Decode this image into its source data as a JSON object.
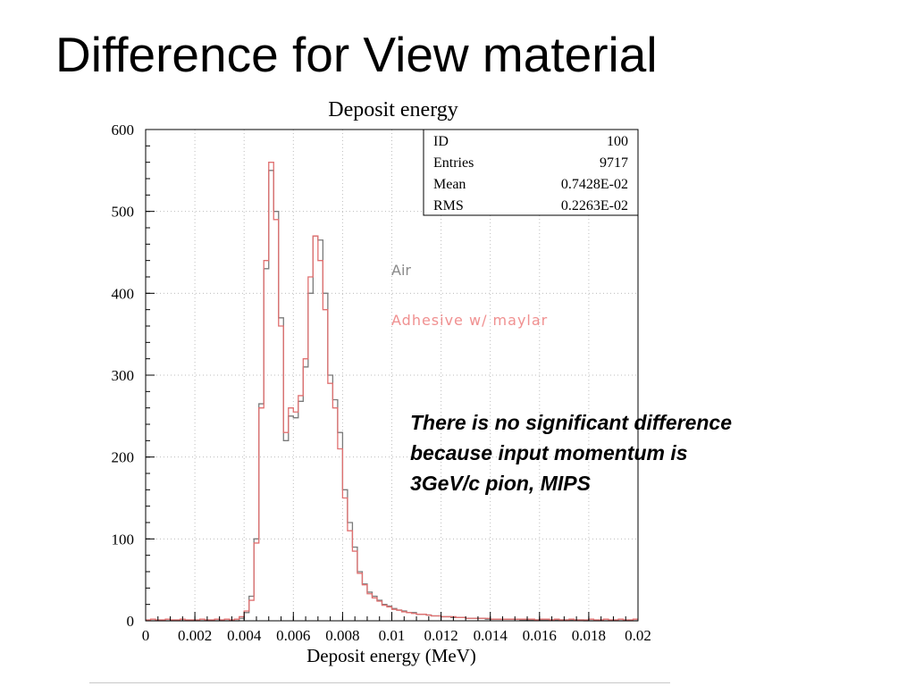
{
  "slide": {
    "title": "Difference for View material",
    "note_lines": [
      "There is no significant difference",
      "because input momentum is",
      "3GeV/c pion, MIPS"
    ]
  },
  "chart_data": {
    "type": "line",
    "title": "Deposit energy",
    "xlabel": "Deposit energy (MeV)",
    "ylabel": "",
    "xlim": [
      0,
      0.02
    ],
    "ylim": [
      0,
      600
    ],
    "grid": true,
    "x_ticks": [
      "0",
      "0.002",
      "0.004",
      "0.006",
      "0.008",
      "0.01",
      "0.012",
      "0.014",
      "0.016",
      "0.018",
      "0.02"
    ],
    "y_ticks": [
      "0",
      "100",
      "200",
      "300",
      "400",
      "500",
      "600"
    ],
    "stats_box": [
      {
        "label": "ID",
        "value": "100"
      },
      {
        "label": "Entries",
        "value": "9717"
      },
      {
        "label": "Mean",
        "value": "0.7428E-02"
      },
      {
        "label": "RMS",
        "value": "0.2263E-02"
      }
    ],
    "x": [
      0.0,
      0.0002,
      0.0004,
      0.0006,
      0.0008,
      0.001,
      0.0012,
      0.0014,
      0.0016,
      0.0018,
      0.002,
      0.0022,
      0.0024,
      0.0026,
      0.0028,
      0.003,
      0.0032,
      0.0034,
      0.0036,
      0.0038,
      0.004,
      0.0042,
      0.0044,
      0.0046,
      0.0048,
      0.005,
      0.0052,
      0.0054,
      0.0056,
      0.0058,
      0.006,
      0.0062,
      0.0064,
      0.0066,
      0.0068,
      0.007,
      0.0072,
      0.0074,
      0.0076,
      0.0078,
      0.008,
      0.0082,
      0.0084,
      0.0086,
      0.0088,
      0.009,
      0.0092,
      0.0094,
      0.0096,
      0.0098,
      0.01,
      0.0102,
      0.0104,
      0.0106,
      0.0108,
      0.011,
      0.0112,
      0.0114,
      0.0116,
      0.0118,
      0.012,
      0.0122,
      0.0124,
      0.0126,
      0.0128,
      0.013,
      0.0132,
      0.0134,
      0.0136,
      0.0138,
      0.014,
      0.0142,
      0.0144,
      0.0146,
      0.0148,
      0.015,
      0.0152,
      0.0154,
      0.0156,
      0.0158,
      0.016,
      0.0162,
      0.0164,
      0.0166,
      0.0168,
      0.017,
      0.0172,
      0.0174,
      0.0176,
      0.0178,
      0.018,
      0.0182,
      0.0184,
      0.0186,
      0.0188,
      0.019,
      0.0192,
      0.0194,
      0.0196,
      0.0198
    ],
    "series": [
      {
        "name": "Air",
        "color": "#7a7a7a",
        "values": [
          0,
          0,
          0,
          0,
          0,
          0,
          0,
          0,
          0,
          0,
          0,
          0,
          0,
          0,
          0,
          0,
          0,
          0,
          0,
          3,
          10,
          30,
          100,
          265,
          430,
          550,
          500,
          370,
          220,
          250,
          248,
          268,
          310,
          400,
          470,
          465,
          400,
          300,
          270,
          230,
          160,
          120,
          90,
          60,
          45,
          35,
          30,
          25,
          20,
          18,
          15,
          13,
          12,
          10,
          10,
          8,
          8,
          7,
          6,
          6,
          5,
          5,
          4,
          4,
          4,
          3,
          3,
          3,
          3,
          2,
          2,
          2,
          2,
          2,
          2,
          2,
          1,
          1,
          1,
          1,
          1,
          1,
          1,
          1,
          1,
          1,
          1,
          1,
          1,
          0,
          0,
          0,
          0,
          0,
          0,
          0,
          0,
          0,
          0,
          0
        ]
      },
      {
        "name": "Adhesive w/ maylar",
        "color": "#e07070",
        "values": [
          1,
          2,
          1,
          1,
          2,
          1,
          1,
          2,
          1,
          1,
          1,
          2,
          1,
          1,
          2,
          1,
          2,
          1,
          2,
          5,
          12,
          25,
          95,
          260,
          440,
          560,
          490,
          360,
          230,
          260,
          255,
          275,
          320,
          420,
          470,
          440,
          380,
          290,
          260,
          210,
          150,
          110,
          85,
          58,
          44,
          33,
          28,
          24,
          19,
          17,
          14,
          13,
          11,
          10,
          9,
          8,
          8,
          7,
          6,
          6,
          5,
          5,
          5,
          4,
          4,
          3,
          3,
          3,
          3,
          3,
          2,
          2,
          2,
          2,
          2,
          2,
          2,
          2,
          2,
          1,
          2,
          2,
          1,
          2,
          1,
          1,
          2,
          1,
          1,
          1,
          2,
          1,
          1,
          2,
          1,
          1,
          2,
          1,
          1,
          2
        ]
      }
    ],
    "annotations": [
      "Air",
      "Adhesive w/ maylar"
    ]
  }
}
